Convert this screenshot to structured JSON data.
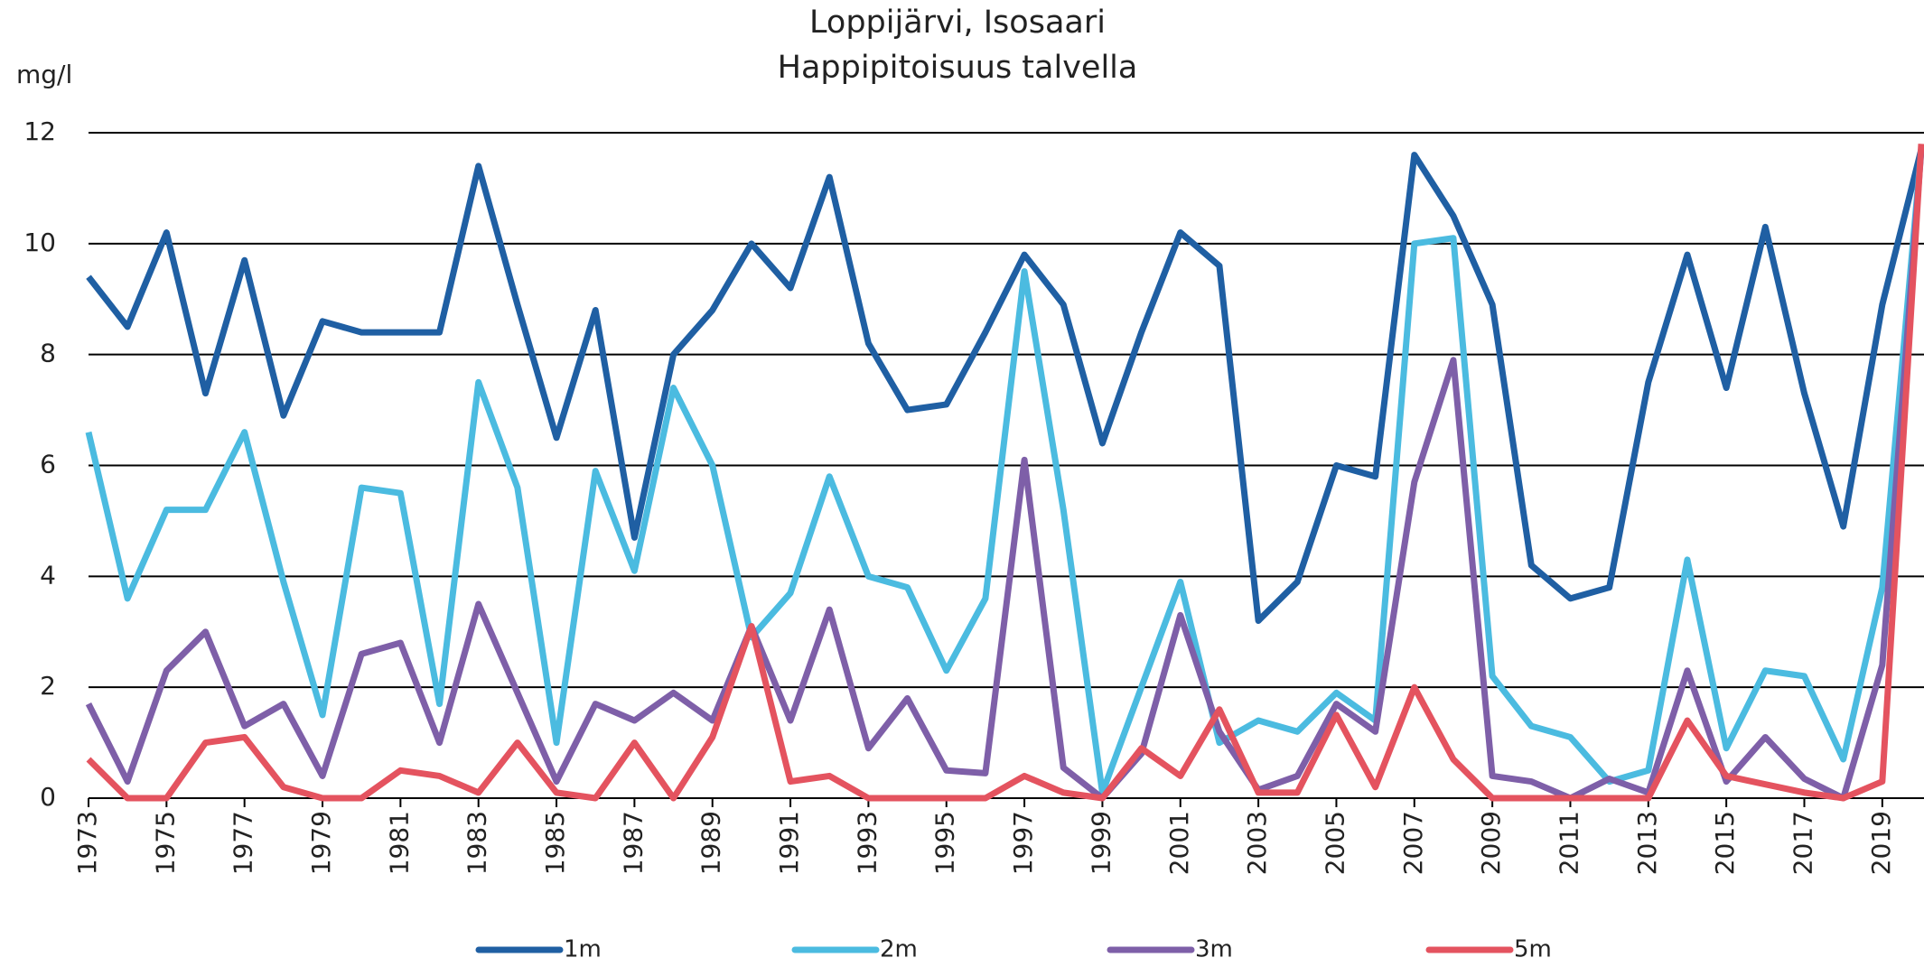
{
  "chart_data": {
    "type": "line",
    "title": "Loppijärvi, Isosaari",
    "subtitle": "Happipitoisuus talvella",
    "y_label": "mg/l",
    "x": [
      1973,
      1974,
      1975,
      1976,
      1977,
      1978,
      1979,
      1980,
      1981,
      1982,
      1983,
      1984,
      1985,
      1986,
      1987,
      1988,
      1989,
      1990,
      1991,
      1992,
      1993,
      1994,
      1995,
      1996,
      1997,
      1998,
      1999,
      2000,
      2001,
      2002,
      2003,
      2004,
      2005,
      2006,
      2007,
      2008,
      2009,
      2010,
      2011,
      2012,
      2013,
      2014,
      2015,
      2016,
      2017,
      2018,
      2019,
      2020
    ],
    "series": [
      {
        "name": "1m",
        "color": "#1f5fa3",
        "values": [
          9.4,
          8.5,
          10.2,
          7.3,
          9.7,
          6.9,
          8.6,
          8.4,
          8.4,
          8.4,
          11.4,
          8.9,
          6.5,
          8.8,
          4.7,
          8.0,
          8.8,
          10.0,
          9.2,
          11.2,
          8.2,
          7.0,
          7.1,
          8.4,
          9.8,
          8.9,
          6.4,
          8.4,
          10.2,
          9.6,
          3.2,
          3.9,
          6.0,
          5.8,
          11.6,
          10.5,
          8.9,
          4.2,
          3.6,
          3.8,
          7.5,
          9.8,
          7.4,
          10.3,
          7.3,
          4.9,
          8.9,
          11.7
        ]
      },
      {
        "name": "2m",
        "color": "#4bbbe0",
        "values": [
          6.6,
          3.6,
          5.2,
          5.2,
          6.6,
          3.9,
          1.5,
          5.6,
          5.5,
          1.7,
          7.5,
          5.6,
          1.0,
          5.9,
          4.1,
          7.4,
          6.0,
          2.9,
          3.7,
          5.8,
          4.0,
          3.8,
          2.3,
          3.6,
          9.5,
          5.2,
          0.1,
          2.0,
          3.9,
          1.0,
          1.4,
          1.2,
          1.9,
          1.4,
          10.0,
          10.1,
          2.2,
          1.3,
          1.1,
          0.3,
          0.5,
          4.3,
          0.9,
          2.3,
          2.2,
          0.7,
          3.8,
          11.7
        ]
      },
      {
        "name": "3m",
        "color": "#7e5fa8",
        "values": [
          1.7,
          0.3,
          2.3,
          3.0,
          1.3,
          1.7,
          0.4,
          2.6,
          2.8,
          1.0,
          3.5,
          1.9,
          0.3,
          1.7,
          1.4,
          1.9,
          1.4,
          3.1,
          1.4,
          3.4,
          0.9,
          1.8,
          0.5,
          0.45,
          6.1,
          0.55,
          0.0,
          0.8,
          3.3,
          1.2,
          0.15,
          0.4,
          1.7,
          1.2,
          5.7,
          7.9,
          0.4,
          0.3,
          0.0,
          0.35,
          0.1,
          2.3,
          0.3,
          1.1,
          0.35,
          0.0,
          2.4,
          11.7
        ]
      },
      {
        "name": "5m",
        "color": "#e4535f",
        "values": [
          0.7,
          0.0,
          0.0,
          1.0,
          1.1,
          0.2,
          0.0,
          0.0,
          0.5,
          0.4,
          0.1,
          1.0,
          0.1,
          0.0,
          1.0,
          0.0,
          1.1,
          3.1,
          0.3,
          0.4,
          0.0,
          0.0,
          0.0,
          0.0,
          0.4,
          0.1,
          0.0,
          0.9,
          0.4,
          1.6,
          0.1,
          0.1,
          1.5,
          0.2,
          2.0,
          0.7,
          0.0,
          0.0,
          0.0,
          0.0,
          0.0,
          1.4,
          0.4,
          0.25,
          0.1,
          0.0,
          0.3,
          11.8
        ]
      }
    ],
    "xlim": [
      1973,
      2020
    ],
    "xticks": [
      1973,
      1975,
      1977,
      1979,
      1981,
      1983,
      1985,
      1987,
      1989,
      1991,
      1993,
      1995,
      1997,
      1999,
      2001,
      2003,
      2005,
      2007,
      2009,
      2011,
      2013,
      2015,
      2017,
      2019
    ],
    "ylim": [
      0,
      12
    ],
    "yticks": [
      0,
      2,
      4,
      6,
      8,
      10,
      12
    ],
    "grid": true,
    "legend": "bottom"
  }
}
